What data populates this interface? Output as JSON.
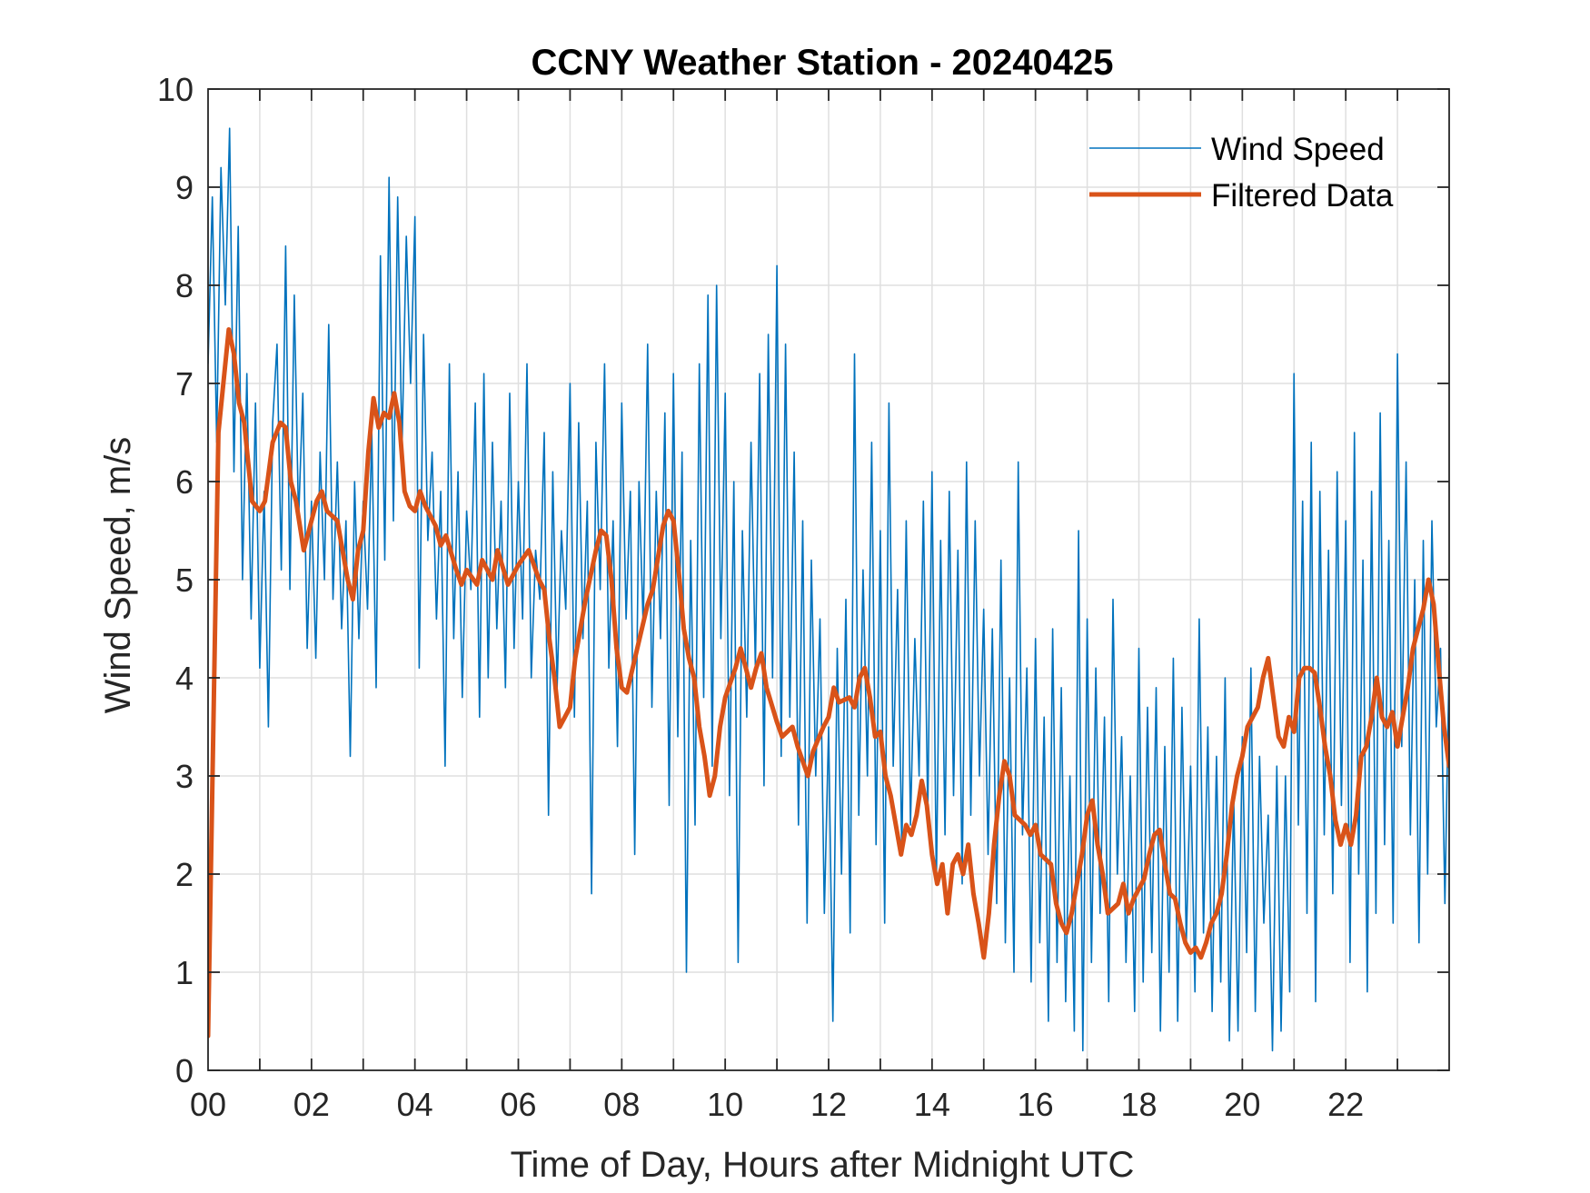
{
  "chart_data": {
    "type": "line",
    "title": "CCNY Weather Station - 20240425",
    "xlabel": "Time of Day, Hours after Midnight UTC",
    "ylabel": "Wind Speed, m/s",
    "xlim": [
      0,
      24
    ],
    "ylim": [
      0,
      10
    ],
    "grid": true,
    "legend_position": "top-right",
    "x_ticks": [
      0,
      2,
      4,
      6,
      8,
      10,
      12,
      14,
      16,
      18,
      20,
      22
    ],
    "x_tick_labels": [
      "00",
      "02",
      "04",
      "06",
      "08",
      "10",
      "12",
      "14",
      "16",
      "18",
      "20",
      "22"
    ],
    "x_minor_grid_step_hours": 1,
    "y_ticks": [
      0,
      1,
      2,
      3,
      4,
      5,
      6,
      7,
      8,
      9,
      10
    ],
    "y_tick_labels": [
      "0",
      "1",
      "2",
      "3",
      "4",
      "5",
      "6",
      "7",
      "8",
      "9",
      "10"
    ],
    "series": [
      {
        "name": "Wind Speed",
        "color": "#0072BD",
        "x_step_hours": 0.0833333,
        "values": [
          7.2,
          8.9,
          6.4,
          9.2,
          7.8,
          9.6,
          6.1,
          8.6,
          5.0,
          7.1,
          4.6,
          6.8,
          4.1,
          5.9,
          3.5,
          6.6,
          7.4,
          5.1,
          8.4,
          4.9,
          7.9,
          5.6,
          6.9,
          4.3,
          5.8,
          4.2,
          6.3,
          5.0,
          7.6,
          4.8,
          6.2,
          4.5,
          5.6,
          3.2,
          6.0,
          4.4,
          5.8,
          4.7,
          6.5,
          3.9,
          8.3,
          5.2,
          9.1,
          5.6,
          8.9,
          6.3,
          8.5,
          7.0,
          8.7,
          4.1,
          7.5,
          5.4,
          6.3,
          4.6,
          5.9,
          3.1,
          7.2,
          4.4,
          6.1,
          3.8,
          5.7,
          4.9,
          6.8,
          3.6,
          7.1,
          4.0,
          6.4,
          4.5,
          5.8,
          3.9,
          6.9,
          4.3,
          6.0,
          4.6,
          7.2,
          4.0,
          5.3,
          4.8,
          6.5,
          2.6,
          6.1,
          3.9,
          5.5,
          4.7,
          7.0,
          3.6,
          6.6,
          4.4,
          5.8,
          1.8,
          6.4,
          4.9,
          7.2,
          4.1,
          5.6,
          3.3,
          6.8,
          4.6,
          5.9,
          2.2,
          6.0,
          4.5,
          7.4,
          3.7,
          5.9,
          4.4,
          6.7,
          2.7,
          7.1,
          3.4,
          6.3,
          1.0,
          5.4,
          2.5,
          7.2,
          3.8,
          7.9,
          3.1,
          8.0,
          4.4,
          6.9,
          2.8,
          6.0,
          1.1,
          5.5,
          3.6,
          6.4,
          4.1,
          7.1,
          2.9,
          7.5,
          4.0,
          8.2,
          3.2,
          7.4,
          3.6,
          6.3,
          2.5,
          5.6,
          1.5,
          5.2,
          3.0,
          4.6,
          1.6,
          3.5,
          0.5,
          4.3,
          2.0,
          4.8,
          1.4,
          7.3,
          2.6,
          5.1,
          3.0,
          6.4,
          2.3,
          5.5,
          1.5,
          6.8,
          3.1,
          4.9,
          2.2,
          5.6,
          2.5,
          4.4,
          3.0,
          5.8,
          2.6,
          6.1,
          1.9,
          5.4,
          2.4,
          5.9,
          2.8,
          5.3,
          1.9,
          6.2,
          2.6,
          5.6,
          3.0,
          4.7,
          2.2,
          4.5,
          1.7,
          5.2,
          1.3,
          4.0,
          1.0,
          6.2,
          2.4,
          4.1,
          0.9,
          4.4,
          1.3,
          3.6,
          0.5,
          4.5,
          1.1,
          3.9,
          0.7,
          3.0,
          0.4,
          5.5,
          0.2,
          4.6,
          1.1,
          4.1,
          1.6,
          3.6,
          0.7,
          4.8,
          2.0,
          3.4,
          1.1,
          3.0,
          0.6,
          4.3,
          0.9,
          3.7,
          1.2,
          3.9,
          0.4,
          3.3,
          1.0,
          4.2,
          0.5,
          3.7,
          1.3,
          3.1,
          0.8,
          4.6,
          1.4,
          3.5,
          0.6,
          3.2,
          0.9,
          4.0,
          0.3,
          2.8,
          0.4,
          3.4,
          1.2,
          4.1,
          0.6,
          3.2,
          1.5,
          2.6,
          0.2,
          3.1,
          0.4,
          3.0,
          0.8,
          7.1,
          2.5,
          5.8,
          1.6,
          6.4,
          0.7,
          5.9,
          2.4,
          5.3,
          1.8,
          6.1,
          2.7,
          5.6,
          1.1,
          6.5,
          2.0,
          5.2,
          0.8,
          5.9,
          1.6,
          6.7,
          2.3,
          5.4,
          1.5,
          7.3,
          3.3,
          6.2,
          2.4,
          5.0,
          1.3,
          5.4,
          2.0,
          5.6,
          3.5,
          4.3,
          1.7,
          4.2
        ]
      },
      {
        "name": "Filtered Data",
        "color": "#D95319",
        "points": [
          [
            0.0,
            0.35
          ],
          [
            0.2,
            6.5
          ],
          [
            0.4,
            7.55
          ],
          [
            0.5,
            7.3
          ],
          [
            0.6,
            6.8
          ],
          [
            0.7,
            6.6
          ],
          [
            0.85,
            5.8
          ],
          [
            1.0,
            5.7
          ],
          [
            1.1,
            5.8
          ],
          [
            1.25,
            6.4
          ],
          [
            1.4,
            6.6
          ],
          [
            1.5,
            6.55
          ],
          [
            1.6,
            6.0
          ],
          [
            1.7,
            5.8
          ],
          [
            1.85,
            5.3
          ],
          [
            2.0,
            5.6
          ],
          [
            2.1,
            5.8
          ],
          [
            2.2,
            5.9
          ],
          [
            2.3,
            5.7
          ],
          [
            2.5,
            5.6
          ],
          [
            2.7,
            5.0
          ],
          [
            2.8,
            4.8
          ],
          [
            2.9,
            5.3
          ],
          [
            3.0,
            5.5
          ],
          [
            3.1,
            6.3
          ],
          [
            3.2,
            6.85
          ],
          [
            3.3,
            6.55
          ],
          [
            3.4,
            6.7
          ],
          [
            3.5,
            6.65
          ],
          [
            3.6,
            6.9
          ],
          [
            3.7,
            6.6
          ],
          [
            3.8,
            5.9
          ],
          [
            3.9,
            5.75
          ],
          [
            4.0,
            5.7
          ],
          [
            4.1,
            5.9
          ],
          [
            4.2,
            5.75
          ],
          [
            4.4,
            5.55
          ],
          [
            4.5,
            5.35
          ],
          [
            4.6,
            5.45
          ],
          [
            4.8,
            5.1
          ],
          [
            4.9,
            4.95
          ],
          [
            5.0,
            5.1
          ],
          [
            5.2,
            4.95
          ],
          [
            5.3,
            5.2
          ],
          [
            5.5,
            5.0
          ],
          [
            5.6,
            5.3
          ],
          [
            5.8,
            4.95
          ],
          [
            6.0,
            5.15
          ],
          [
            6.2,
            5.3
          ],
          [
            6.4,
            5.0
          ],
          [
            6.5,
            4.9
          ],
          [
            6.6,
            4.4
          ],
          [
            6.7,
            4.0
          ],
          [
            6.8,
            3.5
          ],
          [
            7.0,
            3.7
          ],
          [
            7.1,
            4.2
          ],
          [
            7.2,
            4.5
          ],
          [
            7.3,
            4.8
          ],
          [
            7.5,
            5.3
          ],
          [
            7.6,
            5.5
          ],
          [
            7.7,
            5.45
          ],
          [
            7.8,
            5.0
          ],
          [
            7.9,
            4.3
          ],
          [
            8.0,
            3.9
          ],
          [
            8.1,
            3.85
          ],
          [
            8.3,
            4.3
          ],
          [
            8.5,
            4.75
          ],
          [
            8.6,
            4.9
          ],
          [
            8.8,
            5.55
          ],
          [
            8.9,
            5.7
          ],
          [
            9.0,
            5.6
          ],
          [
            9.1,
            5.1
          ],
          [
            9.2,
            4.5
          ],
          [
            9.3,
            4.2
          ],
          [
            9.4,
            4.0
          ],
          [
            9.5,
            3.5
          ],
          [
            9.6,
            3.2
          ],
          [
            9.7,
            2.8
          ],
          [
            9.8,
            3.0
          ],
          [
            9.9,
            3.5
          ],
          [
            10.0,
            3.8
          ],
          [
            10.2,
            4.1
          ],
          [
            10.3,
            4.3
          ],
          [
            10.4,
            4.1
          ],
          [
            10.5,
            3.9
          ],
          [
            10.6,
            4.1
          ],
          [
            10.7,
            4.25
          ],
          [
            10.8,
            3.9
          ],
          [
            11.0,
            3.55
          ],
          [
            11.1,
            3.4
          ],
          [
            11.3,
            3.5
          ],
          [
            11.4,
            3.3
          ],
          [
            11.6,
            3.0
          ],
          [
            11.7,
            3.25
          ],
          [
            11.9,
            3.5
          ],
          [
            12.0,
            3.6
          ],
          [
            12.1,
            3.9
          ],
          [
            12.2,
            3.75
          ],
          [
            12.4,
            3.8
          ],
          [
            12.5,
            3.7
          ],
          [
            12.6,
            4.0
          ],
          [
            12.7,
            4.1
          ],
          [
            12.8,
            3.8
          ],
          [
            12.9,
            3.4
          ],
          [
            13.0,
            3.45
          ],
          [
            13.1,
            3.0
          ],
          [
            13.2,
            2.8
          ],
          [
            13.4,
            2.2
          ],
          [
            13.5,
            2.5
          ],
          [
            13.6,
            2.4
          ],
          [
            13.7,
            2.6
          ],
          [
            13.8,
            2.95
          ],
          [
            13.9,
            2.7
          ],
          [
            14.0,
            2.2
          ],
          [
            14.1,
            1.9
          ],
          [
            14.2,
            2.1
          ],
          [
            14.3,
            1.6
          ],
          [
            14.4,
            2.1
          ],
          [
            14.5,
            2.2
          ],
          [
            14.6,
            2.0
          ],
          [
            14.7,
            2.3
          ],
          [
            14.8,
            1.8
          ],
          [
            14.9,
            1.5
          ],
          [
            15.0,
            1.15
          ],
          [
            15.1,
            1.6
          ],
          [
            15.2,
            2.3
          ],
          [
            15.3,
            2.8
          ],
          [
            15.4,
            3.15
          ],
          [
            15.5,
            3.0
          ],
          [
            15.6,
            2.6
          ],
          [
            15.8,
            2.5
          ],
          [
            15.9,
            2.4
          ],
          [
            16.0,
            2.5
          ],
          [
            16.1,
            2.2
          ],
          [
            16.3,
            2.1
          ],
          [
            16.4,
            1.7
          ],
          [
            16.5,
            1.5
          ],
          [
            16.6,
            1.4
          ],
          [
            16.7,
            1.6
          ],
          [
            16.9,
            2.2
          ],
          [
            17.0,
            2.6
          ],
          [
            17.1,
            2.75
          ],
          [
            17.2,
            2.3
          ],
          [
            17.3,
            2.0
          ],
          [
            17.4,
            1.6
          ],
          [
            17.6,
            1.7
          ],
          [
            17.7,
            1.9
          ],
          [
            17.8,
            1.6
          ],
          [
            17.9,
            1.75
          ],
          [
            18.0,
            1.85
          ],
          [
            18.1,
            1.95
          ],
          [
            18.2,
            2.2
          ],
          [
            18.3,
            2.4
          ],
          [
            18.4,
            2.45
          ],
          [
            18.5,
            2.1
          ],
          [
            18.6,
            1.8
          ],
          [
            18.7,
            1.75
          ],
          [
            18.8,
            1.5
          ],
          [
            18.9,
            1.3
          ],
          [
            19.0,
            1.2
          ],
          [
            19.1,
            1.25
          ],
          [
            19.2,
            1.15
          ],
          [
            19.3,
            1.3
          ],
          [
            19.4,
            1.5
          ],
          [
            19.5,
            1.6
          ],
          [
            19.6,
            1.8
          ],
          [
            19.7,
            2.2
          ],
          [
            19.8,
            2.7
          ],
          [
            19.9,
            3.0
          ],
          [
            20.0,
            3.2
          ],
          [
            20.1,
            3.5
          ],
          [
            20.2,
            3.6
          ],
          [
            20.3,
            3.7
          ],
          [
            20.4,
            4.0
          ],
          [
            20.5,
            4.2
          ],
          [
            20.6,
            3.8
          ],
          [
            20.7,
            3.4
          ],
          [
            20.8,
            3.3
          ],
          [
            20.9,
            3.6
          ],
          [
            21.0,
            3.45
          ],
          [
            21.1,
            4.0
          ],
          [
            21.2,
            4.1
          ],
          [
            21.3,
            4.1
          ],
          [
            21.4,
            4.05
          ],
          [
            21.5,
            3.7
          ],
          [
            21.6,
            3.3
          ],
          [
            21.7,
            3.0
          ],
          [
            21.8,
            2.55
          ],
          [
            21.9,
            2.3
          ],
          [
            22.0,
            2.5
          ],
          [
            22.1,
            2.3
          ],
          [
            22.2,
            2.6
          ],
          [
            22.3,
            3.2
          ],
          [
            22.4,
            3.3
          ],
          [
            22.5,
            3.6
          ],
          [
            22.6,
            4.0
          ],
          [
            22.7,
            3.6
          ],
          [
            22.8,
            3.5
          ],
          [
            22.9,
            3.65
          ],
          [
            23.0,
            3.3
          ],
          [
            23.1,
            3.6
          ],
          [
            23.2,
            3.9
          ],
          [
            23.3,
            4.3
          ],
          [
            23.4,
            4.5
          ],
          [
            23.5,
            4.7
          ],
          [
            23.6,
            5.0
          ],
          [
            23.7,
            4.75
          ],
          [
            23.8,
            4.1
          ],
          [
            23.9,
            3.5
          ],
          [
            24.0,
            3.1
          ]
        ]
      }
    ]
  }
}
